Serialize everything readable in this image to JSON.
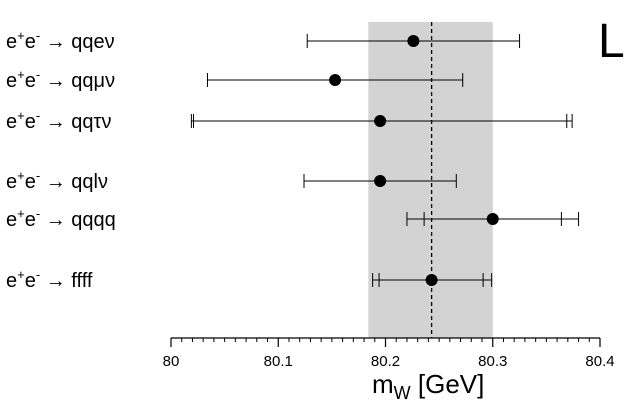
{
  "corner_letter": "L",
  "chart_data": {
    "type": "scatter",
    "xlabel": "m",
    "xlabel_sub": "W",
    "xlabel_unit": " [GeV]",
    "xlim": [
      80,
      80.4
    ],
    "xticks": [
      "80",
      "80.1",
      "80.2",
      "80.3",
      "80.4"
    ],
    "band": {
      "center": 80.243,
      "low": 80.184,
      "high": 80.3
    },
    "points": [
      {
        "label": "qqeν",
        "value": 80.226,
        "err_low": 80.127,
        "err_high": 80.325,
        "inner_low": null,
        "inner_high": null
      },
      {
        "label": "qqμν",
        "value": 80.153,
        "err_low": 80.034,
        "err_high": 80.272,
        "inner_low": null,
        "inner_high": null
      },
      {
        "label": "qqτν",
        "value": 80.195,
        "err_low": 80.019,
        "err_high": 80.374,
        "inner_low": 80.021,
        "inner_high": 80.369
      },
      {
        "label": "qqlν",
        "value": 80.195,
        "err_low": 80.124,
        "err_high": 80.266,
        "inner_low": null,
        "inner_high": null
      },
      {
        "label": "qqqq",
        "value": 80.3,
        "err_low": 80.22,
        "err_high": 80.38,
        "inner_low": 80.236,
        "inner_high": 80.364
      },
      {
        "label": "ffff",
        "value": 80.243,
        "err_low": 80.188,
        "err_high": 80.299,
        "inner_low": 80.194,
        "inner_high": 80.291
      }
    ],
    "label_prefix": "e",
    "label_sup_plus": "+",
    "label_mid": "e",
    "label_sup_minus": "-",
    "label_arrow": " → "
  }
}
